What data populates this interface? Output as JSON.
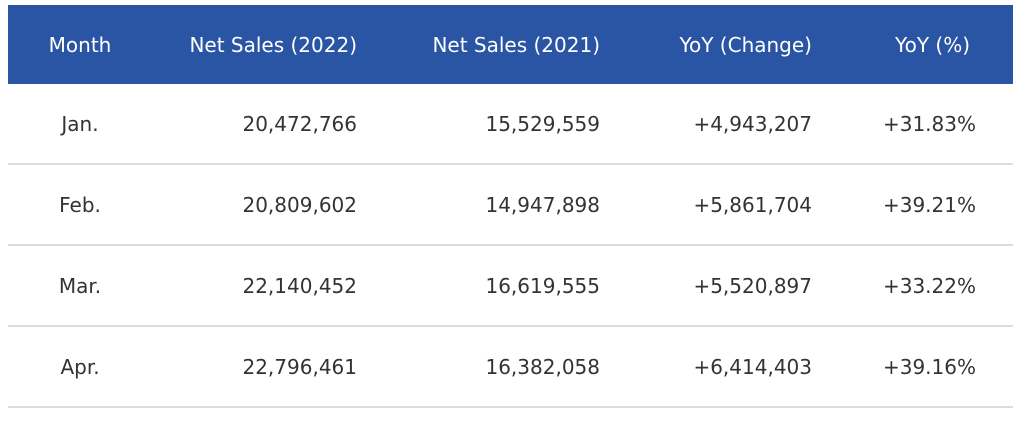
{
  "table": {
    "header_color": "#2a55a5",
    "columns": [
      "Month",
      "Net Sales (2022)",
      "Net Sales (2021)",
      "YoY (Change)",
      "YoY (%)"
    ],
    "rows": [
      [
        "Jan.",
        "20,472,766",
        "15,529,559",
        "+4,943,207",
        "+31.83%"
      ],
      [
        "Feb.",
        "20,809,602",
        "14,947,898",
        "+5,861,704",
        "+39.21%"
      ],
      [
        "Mar.",
        "22,140,452",
        "16,619,555",
        "+5,520,897",
        "+33.22%"
      ],
      [
        "Apr.",
        "22,796,461",
        "16,382,058",
        "+6,414,403",
        "+39.16%"
      ]
    ]
  }
}
